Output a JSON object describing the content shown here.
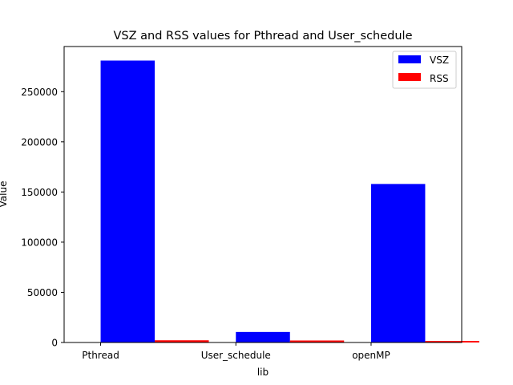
{
  "chart_data": {
    "type": "bar",
    "title": "VSZ and RSS values for Pthread and User_schedule",
    "xlabel": "lib",
    "ylabel": "Value",
    "categories": [
      "Pthread",
      "User_schedule",
      "openMP"
    ],
    "series": [
      {
        "name": "VSZ",
        "color": "#0000ff",
        "values": [
          281000,
          10500,
          158000
        ]
      },
      {
        "name": "RSS",
        "color": "#ff0000",
        "values": [
          2200,
          2000,
          1500
        ]
      }
    ],
    "yticks": [
      0,
      50000,
      100000,
      150000,
      200000,
      250000
    ],
    "ylim": [
      0,
      295000
    ],
    "legend_position": "upper-right",
    "grid": false
  }
}
